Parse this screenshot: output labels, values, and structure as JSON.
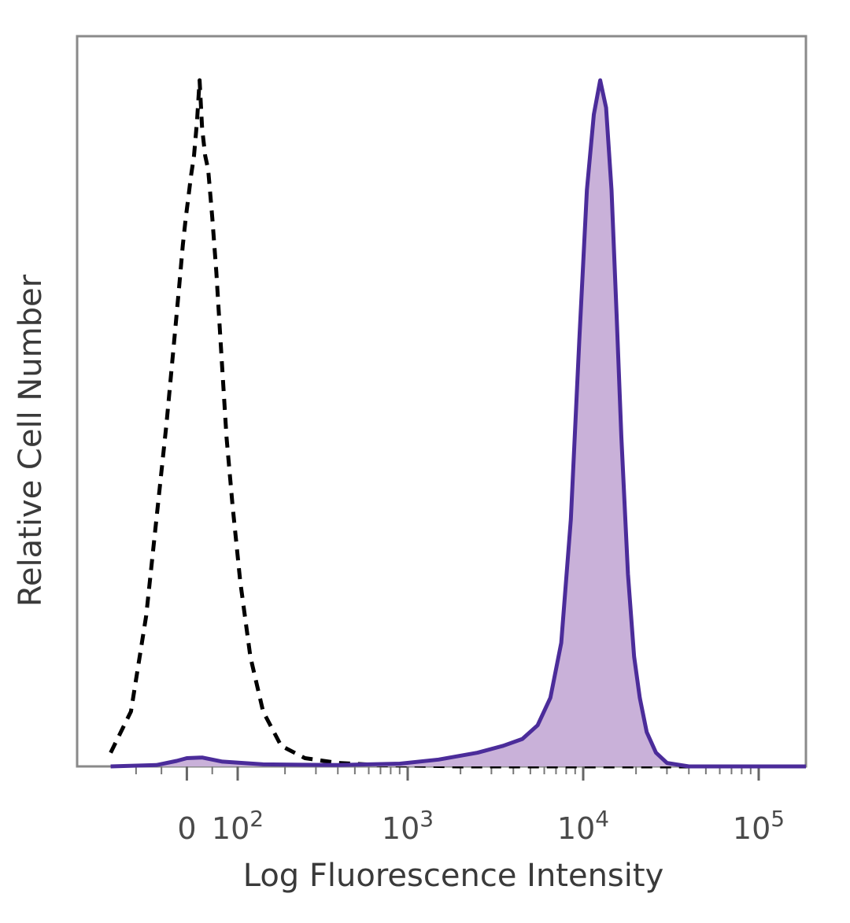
{
  "chart_data": {
    "type": "area",
    "xlabel": "Log Fluorescence Intensity",
    "ylabel": "Relative Cell Number",
    "x_scale": "biexponential",
    "x_ticks": [
      {
        "value": 0,
        "base": "0",
        "exp": ""
      },
      {
        "value": 100,
        "base": "10",
        "exp": "2"
      },
      {
        "value": 1000,
        "base": "10",
        "exp": "3"
      },
      {
        "value": 10000,
        "base": "10",
        "exp": "4"
      },
      {
        "value": 100000,
        "base": "10",
        "exp": "5"
      }
    ],
    "xlim": [
      -150,
      250000
    ],
    "ylim": [
      0,
      1.0
    ],
    "grid": false,
    "colors": {
      "stained_line": "#4b2c9a",
      "stained_fill": "#c9b1d9",
      "control_line": "#000000",
      "frame": "#8a8a8a"
    },
    "series": [
      {
        "style": "dashed",
        "points": [
          [
            -150,
            0.02
          ],
          [
            -110,
            0.08
          ],
          [
            -80,
            0.22
          ],
          [
            -60,
            0.36
          ],
          [
            -40,
            0.5
          ],
          [
            -25,
            0.62
          ],
          [
            -15,
            0.7
          ],
          [
            -8,
            0.76
          ],
          [
            -2,
            0.8
          ],
          [
            3,
            0.83
          ],
          [
            8,
            0.86
          ],
          [
            14,
            0.89
          ],
          [
            20,
            0.94
          ],
          [
            25,
            1.0
          ],
          [
            30,
            0.93
          ],
          [
            36,
            0.89
          ],
          [
            42,
            0.87
          ],
          [
            50,
            0.8
          ],
          [
            58,
            0.72
          ],
          [
            68,
            0.6
          ],
          [
            78,
            0.48
          ],
          [
            90,
            0.38
          ],
          [
            105,
            0.27
          ],
          [
            125,
            0.16
          ],
          [
            150,
            0.08
          ],
          [
            190,
            0.03
          ],
          [
            260,
            0.012
          ],
          [
            400,
            0.005
          ],
          [
            700,
            0.002
          ],
          [
            2000,
            0.0
          ],
          [
            250000,
            0.0
          ]
        ]
      },
      {
        "style": "solid-filled",
        "points": [
          [
            -150,
            0.0
          ],
          [
            -60,
            0.002
          ],
          [
            -20,
            0.008
          ],
          [
            0,
            0.012
          ],
          [
            30,
            0.013
          ],
          [
            70,
            0.007
          ],
          [
            150,
            0.003
          ],
          [
            400,
            0.002
          ],
          [
            900,
            0.004
          ],
          [
            1500,
            0.01
          ],
          [
            2500,
            0.02
          ],
          [
            3500,
            0.03
          ],
          [
            4500,
            0.04
          ],
          [
            5500,
            0.06
          ],
          [
            6500,
            0.1
          ],
          [
            7500,
            0.18
          ],
          [
            8500,
            0.36
          ],
          [
            9500,
            0.62
          ],
          [
            10500,
            0.84
          ],
          [
            11500,
            0.95
          ],
          [
            12500,
            1.0
          ],
          [
            13500,
            0.96
          ],
          [
            14500,
            0.84
          ],
          [
            15500,
            0.66
          ],
          [
            16500,
            0.48
          ],
          [
            18000,
            0.28
          ],
          [
            19500,
            0.16
          ],
          [
            21000,
            0.1
          ],
          [
            23000,
            0.05
          ],
          [
            26000,
            0.02
          ],
          [
            30000,
            0.005
          ],
          [
            40000,
            0.0
          ],
          [
            250000,
            0.0
          ]
        ]
      }
    ]
  }
}
